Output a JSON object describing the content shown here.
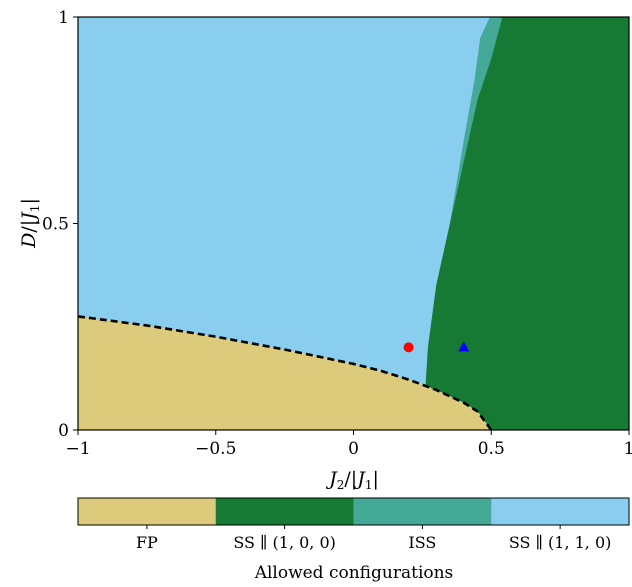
{
  "chart_data": {
    "type": "heatmap",
    "title": "",
    "xlabel": "J₂/|J₁|",
    "ylabel": "D/|J₁|",
    "xlim": [
      -1,
      1
    ],
    "ylim": [
      0,
      1
    ],
    "x_ticks": [
      -1,
      -0.5,
      0,
      0.5,
      1
    ],
    "x_tick_labels": [
      "−1",
      "−0.5",
      "0",
      "0.5",
      "1"
    ],
    "y_ticks": [
      0,
      0.5,
      1
    ],
    "y_tick_labels": [
      "0",
      "0.5",
      "1"
    ],
    "grid": false,
    "phases": [
      {
        "name": "FP",
        "color": "#dccb7a"
      },
      {
        "name": "SS ∥ (1, 0, 0)",
        "color": "#167a35"
      },
      {
        "name": "ISS",
        "color": "#45a998"
      },
      {
        "name": "SS ∥ (1, 1, 0)",
        "color": "#89ceef"
      }
    ],
    "fp_boundary": {
      "style": "dashed",
      "color": "#000000",
      "points": [
        [
          -1.0,
          0.275
        ],
        [
          -0.75,
          0.253
        ],
        [
          -0.5,
          0.226
        ],
        [
          -0.25,
          0.195
        ],
        [
          0.0,
          0.16
        ],
        [
          0.1,
          0.143
        ],
        [
          0.2,
          0.122
        ],
        [
          0.3,
          0.097
        ],
        [
          0.4,
          0.066
        ],
        [
          0.45,
          0.045
        ],
        [
          0.5,
          0.0
        ]
      ]
    },
    "ss100_boundary": [
      [
        0.26,
        0.09
      ],
      [
        0.27,
        0.2
      ],
      [
        0.3,
        0.35
      ],
      [
        0.35,
        0.5
      ],
      [
        0.4,
        0.65
      ],
      [
        0.45,
        0.8
      ],
      [
        0.5,
        0.9
      ],
      [
        0.54,
        1.0
      ]
    ],
    "iss_boundary": [
      [
        0.35,
        0.5
      ],
      [
        0.4,
        0.7
      ],
      [
        0.44,
        0.85
      ],
      [
        0.46,
        0.95
      ],
      [
        0.495,
        1.0
      ]
    ],
    "markers": [
      {
        "shape": "circle",
        "color": "#ff0000",
        "x": 0.2,
        "y": 0.2
      },
      {
        "shape": "triangle",
        "color": "#0000ff",
        "x": 0.4,
        "y": 0.2
      }
    ],
    "colorbar": {
      "title": "Allowed configurations",
      "labels": [
        "FP",
        "SS ∥ (1, 0, 0)",
        "ISS",
        "SS ∥ (1, 1, 0)"
      ]
    }
  }
}
